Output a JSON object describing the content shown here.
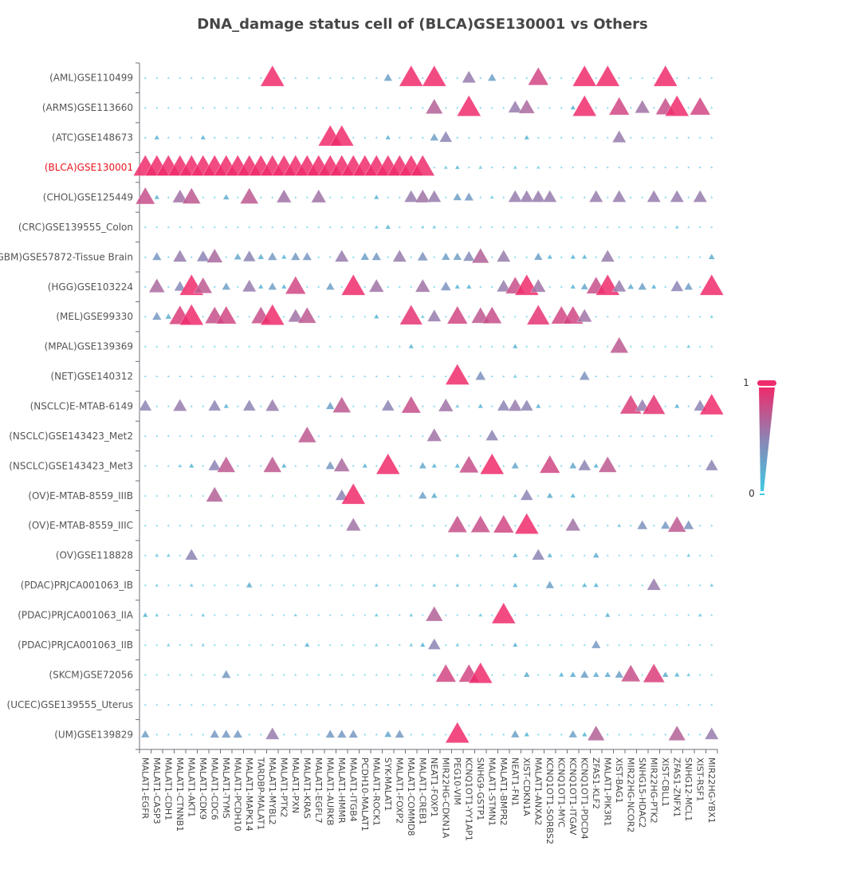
{
  "chart_data": {
    "type": "scatter",
    "title": "DNA_damage status cell of (BLCA)GSE130001 vs Others",
    "highlight_row": "(BLCA)GSE130001",
    "highlight_color": "#e8141e",
    "marker": "triangle",
    "color_scale": {
      "min": 0,
      "max": 1,
      "low_color": "#3ec9e3",
      "mid_color": "#8c84b4",
      "high_color": "#ee2b6c"
    },
    "legend": {
      "type": "visual-map",
      "position": "right",
      "max_label": "1",
      "min_label": "0"
    },
    "x_categories": [
      "MALAT1-EGFR",
      "MALAT1-CASP3",
      "MALAT1-CDH1",
      "MALAT1-CTNNB1",
      "MALAT1-AKT1",
      "MALAT1-CDK9",
      "MALAT1-CDC6",
      "MALAT1-TYMS",
      "MALAT1-PCDH10",
      "MALAT1-MAPK14",
      "TARDBP-MALAT1",
      "MALAT1-MYBL2",
      "MALAT1-PTK2",
      "MALAT1-PXN",
      "MALAT1-KRAS",
      "MALAT1-EGFL7",
      "MALAT1-AURKB",
      "MALAT1-HMMR",
      "MALAT1-ITGB4",
      "PCDH10-MALAT1",
      "MALAT1-ROCK1",
      "SYK-MALAT1",
      "MALAT1-FOXP2",
      "MALAT1-COMMD8",
      "MALAT1-CREB1",
      "NEAT1-FOXP1",
      "MIR22HG-CDKN1A",
      "PEG10-VIM",
      "KCNQ1OT1-YY1AP1",
      "SNHG9-GSTP1",
      "MALAT1-STMN1",
      "MALAT1-BMPR2",
      "NEAT1-FN1",
      "XIST-CDKN1A",
      "MALAT1-ANXA2",
      "KCNQ1OT1-SORBS2",
      "KCNQ1OT1-MYC",
      "KCNQ1OT1-ITGAV",
      "KCNQ1OT1-PDCD4",
      "ZFAS1-KLF2",
      "MALAT1-PIK3R1",
      "XIST-BAG1",
      "MIR22HG-NCOR2",
      "SNHG15-HDAC2",
      "MIR22HG-PTK2",
      "XIST-CBLL1",
      "ZFAS1-ZNFX1",
      "SNHG12-MCL1",
      "XIST-RSF1",
      "MIR22HG-YBX1"
    ],
    "y_categories": [
      "(AML)GSE110499",
      "(ARMS)GSE113660",
      "(ATC)GSE148673",
      "(BLCA)GSE130001",
      "(CHOL)GSE125449",
      "(CRC)GSE139555_Colon",
      "(GBM)GSE57872-Tissue Brain",
      "(HGG)GSE103224",
      "(MEL)GSE99330",
      "(MPAL)GSE139369",
      "(NET)GSE140312",
      "(NSCLC)E-MTAB-6149",
      "(NSCLC)GSE143423_Met2",
      "(NSCLC)GSE143423_Met3",
      "(OV)E-MTAB-8559_IIIB",
      "(OV)E-MTAB-8559_IIIC",
      "(OV)GSE118828",
      "(PDAC)PRJCA001063_IB",
      "(PDAC)PRJCA001063_IIA",
      "(PDAC)PRJCA001063_IIB",
      "(SKCM)GSE72056",
      "(UCEC)GSE139555_Uterus",
      "(UM)GSE139829"
    ],
    "default_value": 0.03,
    "points": [
      {
        "row": "(AML)GSE110499",
        "values": {
          "MALAT1-MYBL2": 1.0,
          "SYK-MALAT1": 0.3,
          "MALAT1-COMMD8": 1.0,
          "NEAT1-FOXP1": 1.0,
          "KCNQ1OT1-YY1AP1": 0.55,
          "MALAT1-STMN1": 0.3,
          "MALAT1-ANXA2": 0.85,
          "KCNQ1OT1-PDCD4": 1.0,
          "MALAT1-PIK3R1": 1.0,
          "XIST-CBLL1": 1.0
        }
      },
      {
        "row": "(ARMS)GSE113660",
        "values": {
          "NEAT1-FOXP1": 0.7,
          "KCNQ1OT1-YY1AP1": 1.0,
          "NEAT1-FN1": 0.55,
          "XIST-CDKN1A": 0.65,
          "KCNQ1OT1-ITGAV": 0.15,
          "KCNQ1OT1-PDCD4": 1.0,
          "XIST-BAG1": 0.85,
          "SNHG15-HDAC2": 0.6,
          "XIST-CBLL1": 0.8,
          "ZFAS1-ZNFX1": 1.0,
          "XIST-RSF1": 0.85
        }
      },
      {
        "row": "(ATC)GSE148673",
        "values": {
          "MALAT1-CASP3": 0.15,
          "MALAT1-CDK9": 0.15,
          "MALAT1-AURKB": 1.0,
          "MALAT1-HMMR": 1.0,
          "SYK-MALAT1": 0.15,
          "NEAT1-FOXP1": 0.3,
          "MIR22HG-CDKN1A": 0.5,
          "XIST-CDKN1A": 0.15,
          "XIST-BAG1": 0.55
        }
      },
      {
        "row": "(BLCA)GSE130001",
        "values": {
          "MALAT1-EGFR": 1,
          "MALAT1-CASP3": 1,
          "MALAT1-CDH1": 1,
          "MALAT1-CTNNB1": 1,
          "MALAT1-AKT1": 1,
          "MALAT1-CDK9": 1,
          "MALAT1-CDC6": 1,
          "MALAT1-TYMS": 1,
          "MALAT1-PCDH10": 1,
          "MALAT1-MAPK14": 1,
          "TARDBP-MALAT1": 1,
          "MALAT1-MYBL2": 1,
          "MALAT1-PTK2": 1,
          "MALAT1-PXN": 1,
          "MALAT1-KRAS": 1,
          "MALAT1-EGFL7": 1,
          "MALAT1-AURKB": 1,
          "MALAT1-HMMR": 1,
          "MALAT1-ITGB4": 1,
          "PCDH10-MALAT1": 1,
          "MALAT1-ROCK1": 1,
          "SYK-MALAT1": 1,
          "MALAT1-FOXP2": 1,
          "MALAT1-COMMD8": 1,
          "MALAT1-CREB1": 1,
          "MIR22HG-CDKN1A": 0.1,
          "PEG10-VIM": 0.12,
          "SNHG9-GSTP1": 0.1,
          "NEAT1-FN1": 0.1,
          "MALAT1-ANXA2": 0.08
        }
      },
      {
        "row": "(CHOL)GSE125449",
        "values": {
          "MALAT1-EGFR": 0.8,
          "MALAT1-CASP3": 0.15,
          "MALAT1-CTNNB1": 0.6,
          "MALAT1-AKT1": 0.75,
          "MALAT1-TYMS": 0.2,
          "MALAT1-MAPK14": 0.75,
          "MALAT1-PTK2": 0.6,
          "MALAT1-EGFL7": 0.6,
          "MALAT1-ROCK1": 0.15,
          "MALAT1-COMMD8": 0.55,
          "MALAT1-CREB1": 0.6,
          "NEAT1-FOXP1": 0.55,
          "PEG10-VIM": 0.3,
          "KCNQ1OT1-YY1AP1": 0.35,
          "MALAT1-STMN1": 0.1,
          "NEAT1-FN1": 0.55,
          "XIST-CDKN1A": 0.55,
          "MALAT1-ANXA2": 0.55,
          "KCNQ1OT1-SORBS2": 0.55,
          "ZFAS1-KLF2": 0.55,
          "XIST-BAG1": 0.55,
          "MIR22HG-PTK2": 0.55,
          "ZFAS1-ZNFX1": 0.55,
          "XIST-RSF1": 0.55
        }
      },
      {
        "row": "(CRC)GSE139555_Colon",
        "values": {
          "MALAT1-ROCK1": 0.1,
          "SYK-MALAT1": 0.15,
          "MALAT1-CREB1": 0.08,
          "NEAT1-FOXP1": 0.1,
          "ZFAS1-ZNFX1": 0.1
        }
      },
      {
        "row": "(GBM)GSE57872-Tissue Brain",
        "values": {
          "MALAT1-CASP3": 0.35,
          "MALAT1-CTNNB1": 0.55,
          "MALAT1-CDK9": 0.5,
          "MALAT1-CDC6": 0.65,
          "MALAT1-PCDH10": 0.25,
          "MALAT1-MAPK14": 0.5,
          "TARDBP-MALAT1": 0.2,
          "MALAT1-MYBL2": 0.35,
          "MALAT1-PTK2": 0.15,
          "MALAT1-PXN": 0.35,
          "MALAT1-KRAS": 0.35,
          "MALAT1-HMMR": 0.55,
          "PCDH10-MALAT1": 0.3,
          "MALAT1-ROCK1": 0.35,
          "MALAT1-FOXP2": 0.55,
          "MALAT1-CREB1": 0.4,
          "MIR22HG-CDKN1A": 0.3,
          "PEG10-VIM": 0.3,
          "KCNQ1OT1-YY1AP1": 0.45,
          "SNHG9-GSTP1": 0.7,
          "MALAT1-BMPR2": 0.55,
          "MALAT1-ANXA2": 0.3,
          "KCNQ1OT1-SORBS2": 0.15,
          "KCNQ1OT1-ITGAV": 0.15,
          "KCNQ1OT1-PDCD4": 0.15,
          "MALAT1-PIK3R1": 0.55,
          "MIR22HG-YBX1": 0.2
        }
      },
      {
        "row": "(HGG)GSE103224",
        "values": {
          "MALAT1-CASP3": 0.65,
          "MALAT1-CTNNB1": 0.45,
          "MALAT1-AKT1": 1.0,
          "MALAT1-CDK9": 0.75,
          "MALAT1-TYMS": 0.3,
          "MALAT1-MAPK14": 0.55,
          "TARDBP-MALAT1": 0.15,
          "MALAT1-MYBL2": 0.3,
          "MALAT1-PTK2": 0.15,
          "MALAT1-PXN": 0.85,
          "MALAT1-AURKB": 0.3,
          "MALAT1-ITGB4": 1.0,
          "MALAT1-ROCK1": 0.6,
          "MALAT1-CREB1": 0.6,
          "MIR22HG-CDKN1A": 0.4,
          "PEG10-VIM": 0.15,
          "KCNQ1OT1-YY1AP1": 0.15,
          "MALAT1-BMPR2": 0.55,
          "NEAT1-FN1": 0.8,
          "XIST-CDKN1A": 1.0,
          "MALAT1-ANXA2": 0.6,
          "KCNQ1OT1-ITGAV": 0.15,
          "KCNQ1OT1-PDCD4": 0.25,
          "ZFAS1-KLF2": 0.8,
          "MALAT1-PIK3R1": 1.0,
          "XIST-BAG1": 0.55,
          "MIR22HG-NCOR2": 0.2,
          "SNHG15-HDAC2": 0.3,
          "MIR22HG-PTK2": 0.15,
          "ZFAS1-ZNFX1": 0.5,
          "SNHG12-MCL1": 0.3,
          "MIR22HG-YBX1": 1.0
        }
      },
      {
        "row": "(MEL)GSE99330",
        "values": {
          "MALAT1-CASP3": 0.35,
          "MALAT1-CDH1": 0.2,
          "MALAT1-CTNNB1": 0.9,
          "MALAT1-AKT1": 1.0,
          "MALAT1-CDC6": 0.8,
          "MALAT1-TYMS": 0.85,
          "TARDBP-MALAT1": 0.8,
          "MALAT1-MYBL2": 1.0,
          "MALAT1-PXN": 0.6,
          "MALAT1-KRAS": 0.75,
          "MALAT1-AURKB": 0.03,
          "MALAT1-ROCK1": 0.15,
          "MALAT1-COMMD8": 0.95,
          "MALAT1-CREB1": 0.1,
          "NEAT1-FOXP1": 0.55,
          "PEG10-VIM": 0.85,
          "SNHG9-GSTP1": 0.75,
          "MALAT1-STMN1": 0.8,
          "MALAT1-ANXA2": 0.95,
          "KCNQ1OT1-MYC": 0.85,
          "KCNQ1OT1-ITGAV": 0.85,
          "KCNQ1OT1-PDCD4": 0.6,
          "MIR22HG-YBX1": 0.08
        }
      },
      {
        "row": "(MPAL)GSE139369",
        "values": {
          "MALAT1-COMMD8": 0.15,
          "NEAT1-FN1": 0.15,
          "XIST-BAG1": 0.75,
          "SNHG12-MCL1": 0.1
        }
      },
      {
        "row": "(NET)GSE140312",
        "values": {
          "PEG10-VIM": 1.0,
          "SNHG9-GSTP1": 0.4,
          "NEAT1-FN1": 0.1,
          "KCNQ1OT1-PDCD4": 0.4
        }
      },
      {
        "row": "(NSCLC)E-MTAB-6149",
        "values": {
          "MALAT1-EGFR": 0.5,
          "MALAT1-CTNNB1": 0.55,
          "MALAT1-CDC6": 0.5,
          "MALAT1-TYMS": 0.15,
          "MALAT1-MAPK14": 0.5,
          "MALAT1-MYBL2": 0.55,
          "MALAT1-AURKB": 0.3,
          "MALAT1-HMMR": 0.75,
          "SYK-MALAT1": 0.5,
          "MALAT1-COMMD8": 0.8,
          "MIR22HG-CDKN1A": 0.6,
          "PEG10-VIM": 0.1,
          "SNHG9-GSTP1": 0.15,
          "MALAT1-BMPR2": 0.5,
          "NEAT1-FN1": 0.55,
          "XIST-CDKN1A": 0.5,
          "MALAT1-ANXA2": 0.15,
          "MIR22HG-NCOR2": 0.9,
          "SNHG15-HDAC2": 0.55,
          "MIR22HG-PTK2": 0.95,
          "ZFAS1-ZNFX1": 0.15,
          "XIST-RSF1": 0.5,
          "MIR22HG-YBX1": 1.0
        }
      },
      {
        "row": "(NSCLC)GSE143423_Met2",
        "values": {
          "MALAT1-KRAS": 0.75,
          "NEAT1-FOXP1": 0.6,
          "MALAT1-STMN1": 0.5
        }
      },
      {
        "row": "(NSCLC)GSE143423_Met3",
        "values": {
          "MALAT1-CTNNB1": 0.1,
          "MALAT1-AKT1": 0.15,
          "MALAT1-CDC6": 0.5,
          "MALAT1-TYMS": 0.75,
          "MALAT1-MYBL2": 0.75,
          "MALAT1-PTK2": 0.15,
          "MALAT1-AURKB": 0.35,
          "MALAT1-HMMR": 0.65,
          "PCDH10-MALAT1": 0.15,
          "SYK-MALAT1": 1.0,
          "MALAT1-CREB1": 0.25,
          "NEAT1-FOXP1": 0.15,
          "PEG10-VIM": 0.15,
          "KCNQ1OT1-YY1AP1": 0.8,
          "MALAT1-STMN1": 1.0,
          "NEAT1-FN1": 0.25,
          "KCNQ1OT1-SORBS2": 0.85,
          "KCNQ1OT1-ITGAV": 0.25,
          "KCNQ1OT1-PDCD4": 0.5,
          "ZFAS1-KLF2": 0.15,
          "MALAT1-PIK3R1": 0.75,
          "MIR22HG-YBX1": 0.5
        }
      },
      {
        "row": "(OV)E-MTAB-8559_IIIB",
        "values": {
          "MALAT1-CDC6": 0.7,
          "MALAT1-HMMR": 0.5,
          "MALAT1-ITGB4": 1.0,
          "MALAT1-CREB1": 0.3,
          "NEAT1-FOXP1": 0.2,
          "NEAT1-FN1": 0.08,
          "XIST-CDKN1A": 0.5,
          "KCNQ1OT1-SORBS2": 0.2,
          "KCNQ1OT1-ITGAV": 0.15
        }
      },
      {
        "row": "(OV)E-MTAB-8559_IIIC",
        "values": {
          "MALAT1-ITGB4": 0.6,
          "PEG10-VIM": 0.8,
          "SNHG9-GSTP1": 0.8,
          "MALAT1-BMPR2": 0.85,
          "XIST-CDKN1A": 1.0,
          "KCNQ1OT1-ITGAV": 0.6,
          "XIST-BAG1": 0.1,
          "SNHG15-HDAC2": 0.4,
          "XIST-CBLL1": 0.35,
          "ZFAS1-ZNFX1": 0.75,
          "SNHG12-MCL1": 0.4
        }
      },
      {
        "row": "(OV)GSE118828",
        "values": {
          "MALAT1-CASP3": 0.1,
          "MALAT1-CDH1": 0.1,
          "MALAT1-AKT1": 0.5,
          "PEG10-VIM": 0.1,
          "NEAT1-FN1": 0.15,
          "MALAT1-ANXA2": 0.5,
          "KCNQ1OT1-SORBS2": 0.15,
          "ZFAS1-KLF2": 0.2,
          "SNHG12-MCL1": 0.1
        }
      },
      {
        "row": "(PDAC)PRJCA001063_IB",
        "values": {
          "MALAT1-CASP3": 0.08,
          "MALAT1-AKT1": 0.1,
          "MALAT1-MAPK14": 0.2,
          "MALAT1-ROCK1": 0.1,
          "NEAT1-FOXP1": 0.1,
          "PEG10-VIM": 0.1,
          "NEAT1-FN1": 0.15,
          "KCNQ1OT1-SORBS2": 0.3,
          "KCNQ1OT1-PDCD4": 0.15,
          "ZFAS1-KLF2": 0.15,
          "MIR22HG-PTK2": 0.55,
          "MIR22HG-YBX1": 0.1
        }
      },
      {
        "row": "(PDAC)PRJCA001063_IIA",
        "values": {
          "MALAT1-EGFR": 0.15,
          "MALAT1-CASP3": 0.1,
          "MALAT1-CDK9": 0.1,
          "MALAT1-PXN": 0.08,
          "MALAT1-ROCK1": 0.1,
          "MALAT1-COMMD8": 0.1,
          "NEAT1-FOXP1": 0.7,
          "SNHG9-GSTP1": 0.1,
          "MALAT1-BMPR2": 1.0,
          "MALAT1-PIK3R1": 0.15,
          "XIST-RSF1": 0.1
        }
      },
      {
        "row": "(PDAC)PRJCA001063_IIB",
        "values": {
          "MALAT1-CDH1": 0.08,
          "MALAT1-AKT1": 0.05,
          "MALAT1-CDK9": 0.08,
          "MALAT1-KRAS": 0.15,
          "MALAT1-ROCK1": 0.08,
          "MALAT1-COMMD8": 0.1,
          "MALAT1-CREB1": 0.15,
          "NEAT1-FOXP1": 0.5,
          "PEG10-VIM": 0.1,
          "NEAT1-FN1": 0.15,
          "ZFAS1-KLF2": 0.35
        }
      },
      {
        "row": "(SKCM)GSE72056",
        "values": {
          "MALAT1-TYMS": 0.35,
          "NEAT1-FOXP1": 0.1,
          "MIR22HG-CDKN1A": 0.85,
          "KCNQ1OT1-YY1AP1": 0.85,
          "SNHG9-GSTP1": 1.0,
          "XIST-CDKN1A": 0.2,
          "KCNQ1OT1-MYC": 0.15,
          "KCNQ1OT1-ITGAV": 0.2,
          "KCNQ1OT1-PDCD4": 0.3,
          "ZFAS1-KLF2": 0.2,
          "MALAT1-PIK3R1": 0.2,
          "XIST-BAG1": 0.3,
          "MIR22HG-NCOR2": 0.8,
          "MIR22HG-PTK2": 0.9,
          "XIST-CBLL1": 0.2,
          "ZFAS1-ZNFX1": 0.15,
          "SNHG12-MCL1": 0.1
        }
      },
      {
        "row": "(UCEC)GSE139555_Uterus",
        "values": {}
      },
      {
        "row": "(UM)GSE139829",
        "values": {
          "MALAT1-EGFR": 0.3,
          "MALAT1-CDC6": 0.35,
          "MALAT1-TYMS": 0.35,
          "MALAT1-PCDH10": 0.35,
          "MALAT1-MYBL2": 0.55,
          "MALAT1-AURKB": 0.35,
          "MALAT1-HMMR": 0.35,
          "MALAT1-ITGB4": 0.35,
          "SYK-MALAT1": 0.25,
          "MALAT1-FOXP2": 0.35,
          "PEG10-VIM": 1.0,
          "NEAT1-FN1": 0.3,
          "XIST-CDKN1A": 0.15,
          "KCNQ1OT1-ITGAV": 0.3,
          "KCNQ1OT1-PDCD4": 0.15,
          "ZFAS1-KLF2": 0.7,
          "ZFAS1-ZNFX1": 0.7,
          "MIR22HG-YBX1": 0.55
        }
      }
    ]
  }
}
